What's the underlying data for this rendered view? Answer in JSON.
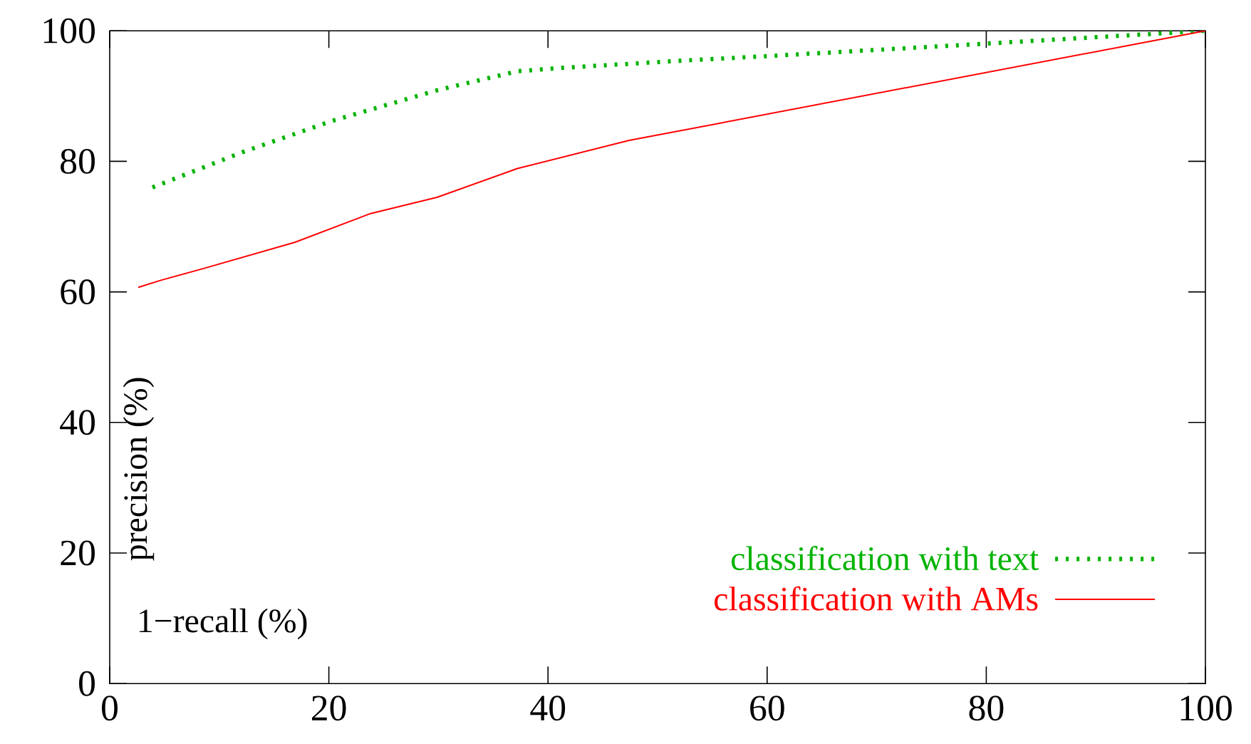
{
  "chart_data": {
    "type": "line",
    "xlabel": "1−recall (%)",
    "ylabel": "precision (%)",
    "xlim": [
      0,
      100
    ],
    "ylim": [
      0,
      100
    ],
    "xticks": [
      0,
      20,
      40,
      60,
      80,
      100
    ],
    "yticks": [
      0,
      20,
      40,
      60,
      80,
      100
    ],
    "legend": "bottom right",
    "grid": false,
    "series": [
      {
        "name": "classification with text",
        "color": "#00b300",
        "line_style": "dotted",
        "x": [
          3.9,
          12.1,
          20.3,
          29.9,
          37.2,
          41.1,
          52,
          59.8,
          79.7,
          100
        ],
        "values": [
          76,
          81.4,
          86.2,
          90.9,
          93.8,
          94.3,
          95.4,
          96.1,
          98,
          100
        ]
      },
      {
        "name": "classification with AMs",
        "color": "#ff0000",
        "line_style": "solid",
        "x": [
          2.6,
          4.7,
          8.6,
          16.9,
          23.8,
          29.9,
          37.2,
          47.4,
          100
        ],
        "values": [
          60.7,
          61.8,
          63.6,
          67.6,
          72,
          74.5,
          78.9,
          83.2,
          100
        ]
      }
    ]
  }
}
